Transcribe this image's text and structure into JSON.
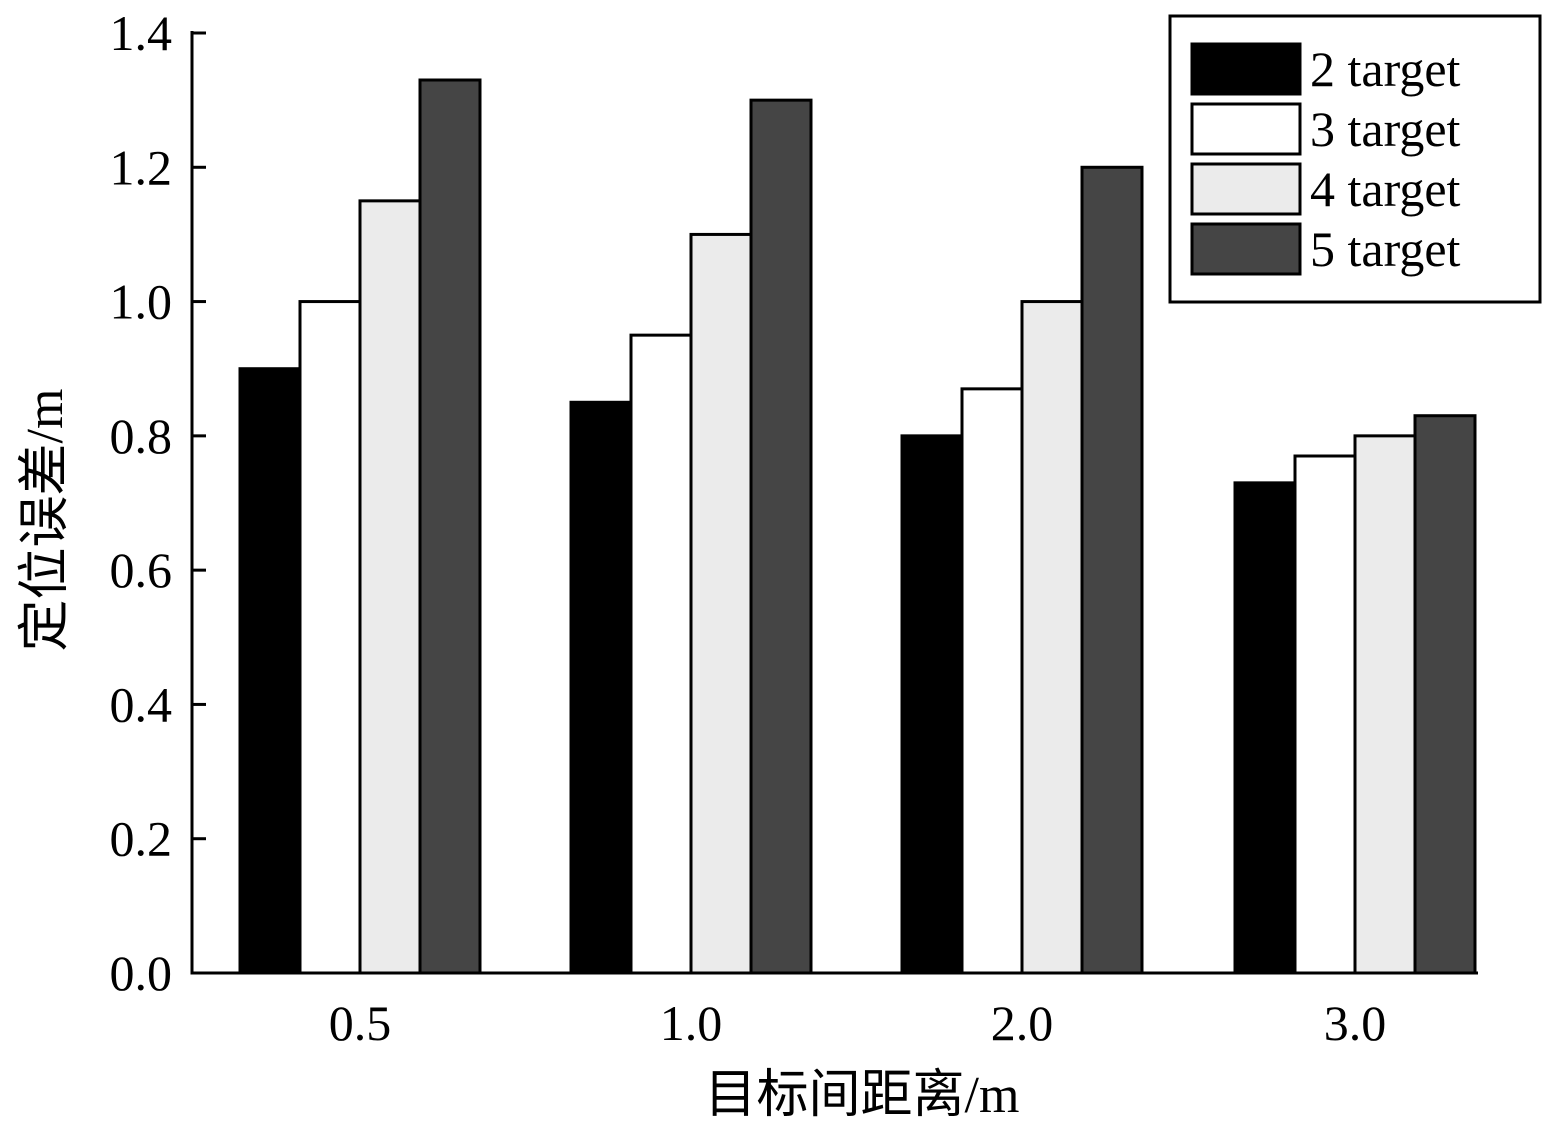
{
  "chart_data": {
    "type": "bar",
    "title": "",
    "xlabel": "目标间距离/m",
    "ylabel": "定位误差/m",
    "categories": [
      "0.5",
      "1.0",
      "2.0",
      "3.0"
    ],
    "ylim": [
      0,
      1.4
    ],
    "yticks": [
      "0.0",
      "0.2",
      "0.4",
      "0.6",
      "0.8",
      "1.0",
      "1.2",
      "1.4"
    ],
    "grid": false,
    "legend_position": "top-right",
    "series": [
      {
        "name": "2 target",
        "values": [
          0.9,
          0.85,
          0.8,
          0.73
        ],
        "color": "#000000"
      },
      {
        "name": "3 target",
        "values": [
          1.0,
          0.95,
          0.87,
          0.77
        ],
        "color": "#ffffff"
      },
      {
        "name": "4 target",
        "values": [
          1.15,
          1.1,
          1.0,
          0.8
        ],
        "color": "#ebebeb"
      },
      {
        "name": "5 target",
        "values": [
          1.33,
          1.3,
          1.2,
          0.83
        ],
        "color": "#454545"
      }
    ]
  }
}
